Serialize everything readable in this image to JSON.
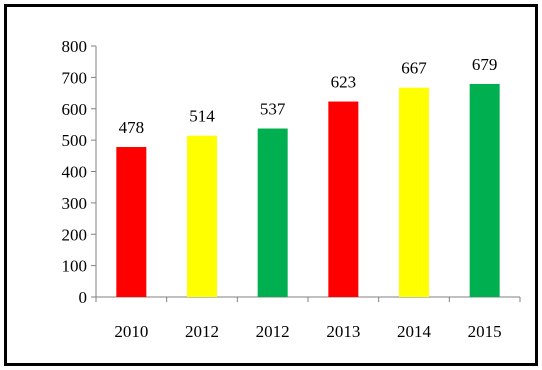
{
  "chart_data": {
    "type": "bar",
    "title": "",
    "xlabel": "",
    "ylabel": "",
    "categories": [
      "2010",
      "2012",
      "2012",
      "2013",
      "2014",
      "2015"
    ],
    "values": [
      478,
      514,
      537,
      623,
      667,
      679
    ],
    "colors": [
      "#ff0000",
      "#ffff00",
      "#00b050",
      "#ff0000",
      "#ffff00",
      "#00b050"
    ],
    "ylim": [
      0,
      800
    ],
    "yticks": [
      0,
      100,
      200,
      300,
      400,
      500,
      600,
      700,
      800
    ],
    "grid": false,
    "legend": "none"
  }
}
